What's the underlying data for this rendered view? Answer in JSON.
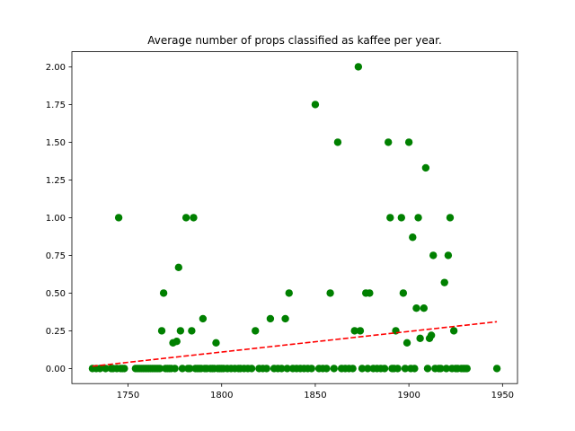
{
  "chart_data": {
    "type": "scatter",
    "title": "Average number of props classified as kaffee per year.",
    "xlabel": "",
    "ylabel": "",
    "xlim": [
      1720,
      1958
    ],
    "ylim": [
      -0.1,
      2.1
    ],
    "x_ticks": [
      1750,
      1800,
      1850,
      1900,
      1950
    ],
    "y_ticks": [
      0.0,
      0.25,
      0.5,
      0.75,
      1.0,
      1.25,
      1.5,
      1.75,
      2.0
    ],
    "grid": false,
    "point_color": "#008000",
    "trend_color": "#ff0000",
    "series": [
      {
        "points": [
          [
            1731,
            0
          ],
          [
            1733,
            0
          ],
          [
            1735,
            0
          ],
          [
            1738,
            0
          ],
          [
            1741,
            0
          ],
          [
            1742,
            0
          ],
          [
            1744,
            0
          ],
          [
            1745,
            1.0
          ],
          [
            1746,
            0
          ],
          [
            1747,
            0
          ],
          [
            1748,
            0
          ],
          [
            1754,
            0
          ],
          [
            1755,
            0
          ],
          [
            1756,
            0
          ],
          [
            1757,
            0
          ],
          [
            1758,
            0
          ],
          [
            1759,
            0
          ],
          [
            1760,
            0
          ],
          [
            1761,
            0
          ],
          [
            1762,
            0
          ],
          [
            1763,
            0
          ],
          [
            1764,
            0
          ],
          [
            1765,
            0
          ],
          [
            1766,
            0
          ],
          [
            1767,
            0
          ],
          [
            1768,
            0.25
          ],
          [
            1769,
            0.5
          ],
          [
            1770,
            0
          ],
          [
            1771,
            0
          ],
          [
            1772,
            0
          ],
          [
            1773,
            0
          ],
          [
            1774,
            0.17
          ],
          [
            1775,
            0
          ],
          [
            1776,
            0.18
          ],
          [
            1777,
            0.67
          ],
          [
            1778,
            0.25
          ],
          [
            1779,
            0
          ],
          [
            1781,
            1.0
          ],
          [
            1782,
            0
          ],
          [
            1783,
            0
          ],
          [
            1784,
            0.25
          ],
          [
            1785,
            1.0
          ],
          [
            1786,
            0
          ],
          [
            1787,
            0
          ],
          [
            1788,
            0
          ],
          [
            1789,
            0
          ],
          [
            1790,
            0.33
          ],
          [
            1791,
            0
          ],
          [
            1792,
            0
          ],
          [
            1794,
            0
          ],
          [
            1795,
            0
          ],
          [
            1796,
            0
          ],
          [
            1797,
            0.17
          ],
          [
            1798,
            0
          ],
          [
            1799,
            0
          ],
          [
            1800,
            0
          ],
          [
            1801,
            0
          ],
          [
            1803,
            0
          ],
          [
            1805,
            0
          ],
          [
            1807,
            0
          ],
          [
            1809,
            0
          ],
          [
            1810,
            0
          ],
          [
            1812,
            0
          ],
          [
            1814,
            0
          ],
          [
            1816,
            0
          ],
          [
            1818,
            0.25
          ],
          [
            1820,
            0
          ],
          [
            1822,
            0
          ],
          [
            1824,
            0
          ],
          [
            1826,
            0.33
          ],
          [
            1828,
            0
          ],
          [
            1830,
            0
          ],
          [
            1832,
            0
          ],
          [
            1834,
            0.33
          ],
          [
            1835,
            0
          ],
          [
            1836,
            0.5
          ],
          [
            1838,
            0
          ],
          [
            1840,
            0
          ],
          [
            1842,
            0
          ],
          [
            1844,
            0
          ],
          [
            1846,
            0
          ],
          [
            1848,
            0
          ],
          [
            1850,
            1.75
          ],
          [
            1852,
            0
          ],
          [
            1854,
            0
          ],
          [
            1856,
            0
          ],
          [
            1858,
            0.5
          ],
          [
            1860,
            0
          ],
          [
            1862,
            1.5
          ],
          [
            1864,
            0
          ],
          [
            1866,
            0
          ],
          [
            1868,
            0
          ],
          [
            1870,
            0
          ],
          [
            1871,
            0.25
          ],
          [
            1873,
            2.0
          ],
          [
            1874,
            0.25
          ],
          [
            1875,
            0
          ],
          [
            1877,
            0.5
          ],
          [
            1878,
            0
          ],
          [
            1879,
            0.5
          ],
          [
            1881,
            0
          ],
          [
            1883,
            0
          ],
          [
            1885,
            0
          ],
          [
            1887,
            0
          ],
          [
            1889,
            1.5
          ],
          [
            1890,
            1.0
          ],
          [
            1891,
            0
          ],
          [
            1892,
            0
          ],
          [
            1893,
            0.25
          ],
          [
            1894,
            0
          ],
          [
            1896,
            1.0
          ],
          [
            1897,
            0.5
          ],
          [
            1898,
            0
          ],
          [
            1899,
            0.17
          ],
          [
            1900,
            1.5
          ],
          [
            1901,
            0
          ],
          [
            1902,
            0.87
          ],
          [
            1903,
            0
          ],
          [
            1904,
            0.4
          ],
          [
            1905,
            1.0
          ],
          [
            1906,
            0.2
          ],
          [
            1908,
            0.4
          ],
          [
            1909,
            1.33
          ],
          [
            1910,
            0
          ],
          [
            1911,
            0.2
          ],
          [
            1912,
            0.22
          ],
          [
            1913,
            0.75
          ],
          [
            1914,
            0
          ],
          [
            1916,
            0
          ],
          [
            1917,
            0
          ],
          [
            1919,
            0.57
          ],
          [
            1920,
            0
          ],
          [
            1921,
            0.75
          ],
          [
            1922,
            1.0
          ],
          [
            1923,
            0
          ],
          [
            1924,
            0.25
          ],
          [
            1925,
            0
          ],
          [
            1926,
            0
          ],
          [
            1928,
            0
          ],
          [
            1929,
            0
          ],
          [
            1930,
            0
          ],
          [
            1931,
            0
          ],
          [
            1947,
            0
          ]
        ]
      }
    ],
    "trendline": {
      "x": [
        1731,
        1947
      ],
      "y": [
        0.015,
        0.31
      ],
      "style": "dashed"
    }
  }
}
